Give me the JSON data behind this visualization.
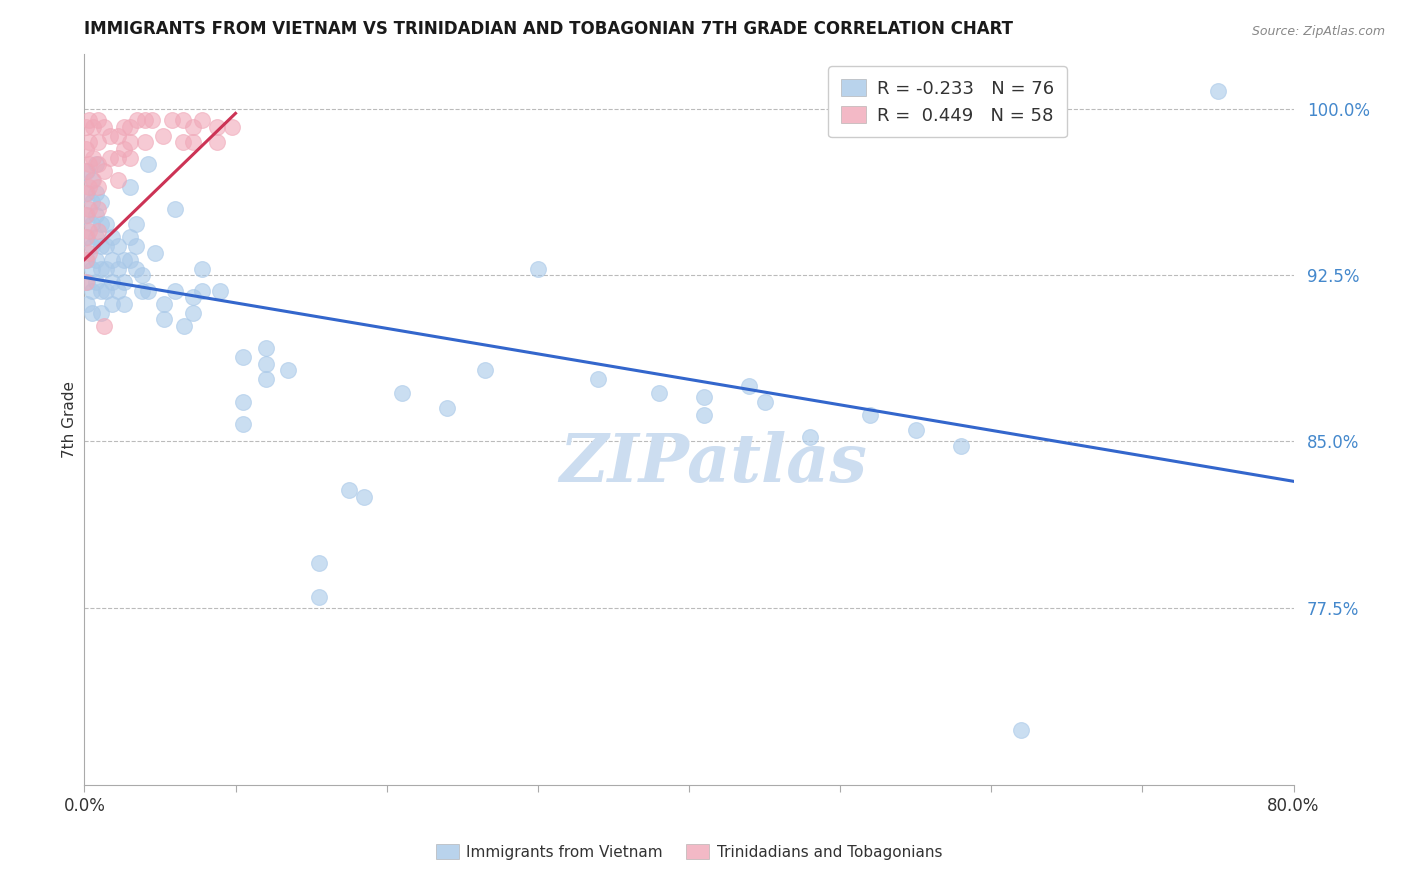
{
  "title": "IMMIGRANTS FROM VIETNAM VS TRINIDADIAN AND TOBAGONIAN 7TH GRADE CORRELATION CHART",
  "source": "Source: ZipAtlas.com",
  "ylabel": "7th Grade",
  "ytick_labels": [
    "100.0%",
    "92.5%",
    "85.0%",
    "77.5%"
  ],
  "ytick_values": [
    1.0,
    0.925,
    0.85,
    0.775
  ],
  "xlim": [
    0.0,
    0.8
  ],
  "ylim": [
    0.695,
    1.025
  ],
  "legend_blue_r": "-0.233",
  "legend_blue_n": "76",
  "legend_pink_r": "0.449",
  "legend_pink_n": "58",
  "blue_color": "#a8c8e8",
  "pink_color": "#f0a8b8",
  "blue_line_color": "#3366cc",
  "pink_line_color": "#cc3355",
  "ytick_color": "#4488cc",
  "watermark_color": "#ccddf0",
  "blue_points": [
    [
      0.002,
      0.972
    ],
    [
      0.002,
      0.962
    ],
    [
      0.002,
      0.952
    ],
    [
      0.002,
      0.942
    ],
    [
      0.002,
      0.932
    ],
    [
      0.002,
      0.922
    ],
    [
      0.002,
      0.912
    ],
    [
      0.005,
      0.968
    ],
    [
      0.005,
      0.958
    ],
    [
      0.005,
      0.948
    ],
    [
      0.005,
      0.938
    ],
    [
      0.005,
      0.928
    ],
    [
      0.005,
      0.918
    ],
    [
      0.005,
      0.908
    ],
    [
      0.008,
      0.975
    ],
    [
      0.008,
      0.962
    ],
    [
      0.008,
      0.952
    ],
    [
      0.008,
      0.942
    ],
    [
      0.008,
      0.932
    ],
    [
      0.008,
      0.922
    ],
    [
      0.011,
      0.958
    ],
    [
      0.011,
      0.948
    ],
    [
      0.011,
      0.938
    ],
    [
      0.011,
      0.928
    ],
    [
      0.011,
      0.918
    ],
    [
      0.011,
      0.908
    ],
    [
      0.014,
      0.948
    ],
    [
      0.014,
      0.938
    ],
    [
      0.014,
      0.928
    ],
    [
      0.014,
      0.918
    ],
    [
      0.018,
      0.942
    ],
    [
      0.018,
      0.932
    ],
    [
      0.018,
      0.922
    ],
    [
      0.018,
      0.912
    ],
    [
      0.022,
      0.938
    ],
    [
      0.022,
      0.928
    ],
    [
      0.022,
      0.918
    ],
    [
      0.026,
      0.932
    ],
    [
      0.026,
      0.922
    ],
    [
      0.026,
      0.912
    ],
    [
      0.03,
      0.965
    ],
    [
      0.03,
      0.942
    ],
    [
      0.03,
      0.932
    ],
    [
      0.034,
      0.948
    ],
    [
      0.034,
      0.938
    ],
    [
      0.034,
      0.928
    ],
    [
      0.038,
      0.925
    ],
    [
      0.038,
      0.918
    ],
    [
      0.042,
      0.975
    ],
    [
      0.042,
      0.918
    ],
    [
      0.047,
      0.935
    ],
    [
      0.053,
      0.912
    ],
    [
      0.053,
      0.905
    ],
    [
      0.06,
      0.955
    ],
    [
      0.06,
      0.918
    ],
    [
      0.066,
      0.902
    ],
    [
      0.072,
      0.915
    ],
    [
      0.072,
      0.908
    ],
    [
      0.078,
      0.928
    ],
    [
      0.078,
      0.918
    ],
    [
      0.09,
      0.918
    ],
    [
      0.105,
      0.888
    ],
    [
      0.105,
      0.868
    ],
    [
      0.105,
      0.858
    ],
    [
      0.12,
      0.892
    ],
    [
      0.12,
      0.885
    ],
    [
      0.12,
      0.878
    ],
    [
      0.135,
      0.882
    ],
    [
      0.155,
      0.795
    ],
    [
      0.155,
      0.78
    ],
    [
      0.175,
      0.828
    ],
    [
      0.185,
      0.825
    ],
    [
      0.21,
      0.872
    ],
    [
      0.24,
      0.865
    ],
    [
      0.265,
      0.882
    ],
    [
      0.3,
      0.928
    ],
    [
      0.34,
      0.878
    ],
    [
      0.38,
      0.872
    ],
    [
      0.41,
      0.87
    ],
    [
      0.41,
      0.862
    ],
    [
      0.44,
      0.875
    ],
    [
      0.45,
      0.868
    ],
    [
      0.48,
      0.852
    ],
    [
      0.52,
      0.862
    ],
    [
      0.55,
      0.855
    ],
    [
      0.58,
      0.848
    ],
    [
      0.62,
      0.72
    ],
    [
      0.75,
      1.008
    ]
  ],
  "pink_points": [
    [
      0.001,
      0.992
    ],
    [
      0.001,
      0.982
    ],
    [
      0.001,
      0.972
    ],
    [
      0.001,
      0.962
    ],
    [
      0.001,
      0.952
    ],
    [
      0.001,
      0.942
    ],
    [
      0.001,
      0.932
    ],
    [
      0.001,
      0.922
    ],
    [
      0.003,
      0.995
    ],
    [
      0.003,
      0.985
    ],
    [
      0.003,
      0.975
    ],
    [
      0.003,
      0.965
    ],
    [
      0.003,
      0.955
    ],
    [
      0.003,
      0.945
    ],
    [
      0.003,
      0.935
    ],
    [
      0.006,
      0.992
    ],
    [
      0.006,
      0.978
    ],
    [
      0.006,
      0.968
    ],
    [
      0.009,
      0.995
    ],
    [
      0.009,
      0.985
    ],
    [
      0.009,
      0.975
    ],
    [
      0.009,
      0.965
    ],
    [
      0.009,
      0.955
    ],
    [
      0.009,
      0.945
    ],
    [
      0.013,
      0.992
    ],
    [
      0.013,
      0.972
    ],
    [
      0.013,
      0.902
    ],
    [
      0.017,
      0.988
    ],
    [
      0.017,
      0.978
    ],
    [
      0.022,
      0.988
    ],
    [
      0.022,
      0.978
    ],
    [
      0.022,
      0.968
    ],
    [
      0.026,
      0.992
    ],
    [
      0.026,
      0.982
    ],
    [
      0.03,
      0.992
    ],
    [
      0.03,
      0.985
    ],
    [
      0.03,
      0.978
    ],
    [
      0.035,
      0.995
    ],
    [
      0.04,
      0.995
    ],
    [
      0.04,
      0.985
    ],
    [
      0.045,
      0.995
    ],
    [
      0.052,
      0.988
    ],
    [
      0.058,
      0.995
    ],
    [
      0.065,
      0.995
    ],
    [
      0.065,
      0.985
    ],
    [
      0.072,
      0.992
    ],
    [
      0.072,
      0.985
    ],
    [
      0.078,
      0.995
    ],
    [
      0.088,
      0.992
    ],
    [
      0.088,
      0.985
    ],
    [
      0.098,
      0.992
    ]
  ],
  "blue_trendline": [
    [
      0.0,
      0.924
    ],
    [
      0.8,
      0.832
    ]
  ],
  "pink_trendline": [
    [
      0.0,
      0.932
    ],
    [
      0.1,
      0.998
    ]
  ]
}
